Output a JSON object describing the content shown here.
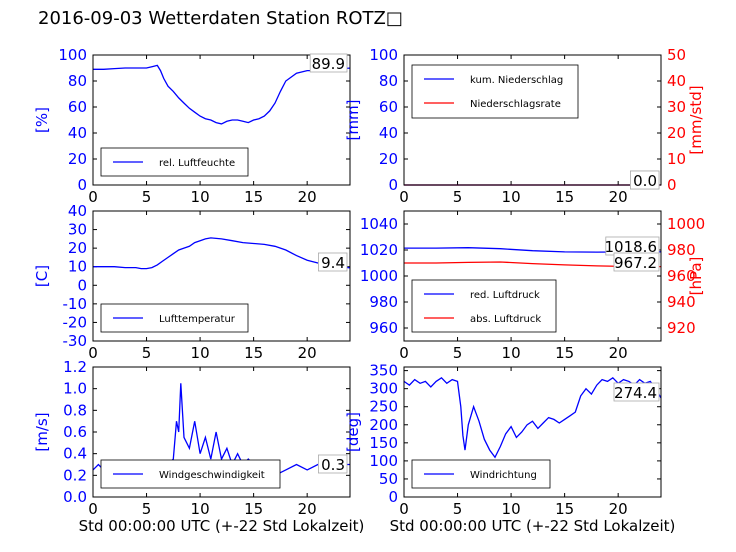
{
  "title": "2016-09-03 Wetterdaten Station ROTZ□",
  "colors": {
    "blue": "#0000ff",
    "red": "#ff0000",
    "black": "#000000"
  },
  "chart_data": [
    {
      "id": "humidity",
      "type": "line",
      "xlim": [
        0,
        24
      ],
      "xticks": [
        0,
        5,
        10,
        15,
        20
      ],
      "ylim": [
        0,
        100
      ],
      "yticks": [
        0,
        20,
        40,
        60,
        80,
        100
      ],
      "ylabel": "[%]",
      "xlabel": "",
      "legend_position": "lower-left",
      "last_value": "89.9",
      "series": [
        {
          "name": "rel. Luftfeuchte",
          "color": "#0000ff",
          "axis": "left",
          "x": [
            0,
            1,
            2,
            3,
            4,
            5,
            5.5,
            6,
            6.3,
            6.6,
            7,
            7.5,
            8,
            8.5,
            9,
            9.5,
            10,
            10.5,
            11,
            11.5,
            12,
            12.5,
            13,
            13.5,
            14,
            14.5,
            15,
            15.5,
            16,
            16.5,
            17,
            17.5,
            18,
            19,
            20,
            21,
            22,
            23,
            24
          ],
          "y": [
            89,
            89,
            89.5,
            90,
            90,
            90,
            91,
            92,
            88,
            82,
            76,
            72,
            67,
            63,
            59,
            56,
            53,
            51,
            50,
            48,
            47,
            49,
            50,
            50,
            49,
            48,
            50,
            51,
            53,
            57,
            63,
            72,
            80,
            86,
            88,
            88,
            89,
            89.5,
            89.9
          ]
        }
      ]
    },
    {
      "id": "precipitation",
      "type": "line",
      "xlim": [
        0,
        24
      ],
      "xticks": [
        0,
        5,
        10,
        15,
        20
      ],
      "ylim": [
        0,
        100
      ],
      "yticks": [
        0,
        20,
        40,
        60,
        80,
        100
      ],
      "ylabel": "[mm]",
      "y2lim": [
        0,
        50
      ],
      "y2ticks": [
        0,
        10,
        20,
        30,
        40,
        50
      ],
      "y2label": "[mm/std]",
      "legend_position": "upper-left",
      "last_value": "0.0",
      "last_value2": "0.0",
      "series": [
        {
          "name": "kum. Niederschlag",
          "color": "#0000ff",
          "axis": "left",
          "x": [
            0,
            24
          ],
          "y": [
            0,
            0
          ]
        },
        {
          "name": "Niederschlagsrate",
          "color": "#ff0000",
          "axis": "right",
          "x": [
            0,
            24
          ],
          "y": [
            0,
            0
          ]
        }
      ]
    },
    {
      "id": "temperature",
      "type": "line",
      "xlim": [
        0,
        24
      ],
      "xticks": [
        0,
        5,
        10,
        15,
        20
      ],
      "ylim": [
        -30,
        40
      ],
      "yticks": [
        -30,
        -20,
        -10,
        0,
        10,
        20,
        30,
        40
      ],
      "ylabel": "[C]",
      "legend_position": "lower-left",
      "last_value": "9.4",
      "series": [
        {
          "name": "Lufttemperatur",
          "color": "#0000ff",
          "axis": "left",
          "x": [
            0,
            1,
            2,
            3,
            4,
            4.5,
            5,
            5.5,
            6,
            6.5,
            7,
            7.5,
            8,
            8.5,
            9,
            9.5,
            10,
            10.5,
            11,
            12,
            13,
            14,
            15,
            16,
            17,
            18,
            19,
            20,
            21,
            22,
            23,
            24
          ],
          "y": [
            10,
            10,
            10,
            9.5,
            9.5,
            9,
            9,
            9.5,
            11,
            13,
            15,
            17,
            19,
            20,
            21,
            23,
            24,
            25,
            25.5,
            25,
            24,
            23,
            22.5,
            22,
            21,
            19,
            16,
            13.5,
            12,
            10.5,
            10,
            9.4
          ]
        }
      ]
    },
    {
      "id": "pressure",
      "type": "line",
      "xlim": [
        0,
        24
      ],
      "xticks": [
        0,
        5,
        10,
        15,
        20
      ],
      "ylim": [
        950,
        1050
      ],
      "yticks": [
        960,
        980,
        1000,
        1020,
        1040
      ],
      "y2lim": [
        910,
        1010
      ],
      "y2ticks": [
        920,
        940,
        960,
        980,
        1000
      ],
      "y2label": "[hPa]",
      "legend_position": "lower-left",
      "last_value": "1018.6",
      "last_value2": "967.2",
      "series": [
        {
          "name": "red. Luftdruck",
          "color": "#0000ff",
          "axis": "left",
          "x": [
            0,
            3,
            6,
            9,
            12,
            15,
            18,
            21,
            24
          ],
          "y": [
            1021.5,
            1021.5,
            1021.8,
            1021,
            1019.5,
            1018.5,
            1018.4,
            1018.5,
            1018.6
          ]
        },
        {
          "name": "abs. Luftdruck",
          "color": "#ff0000",
          "axis": "right",
          "x": [
            0,
            3,
            6,
            9,
            12,
            15,
            18,
            21,
            24
          ],
          "y": [
            970,
            970,
            970.5,
            970.8,
            969.5,
            968.5,
            967.8,
            967.3,
            967.2
          ]
        }
      ]
    },
    {
      "id": "wind-speed",
      "type": "line",
      "xlim": [
        0,
        24
      ],
      "xticks": [
        0,
        5,
        10,
        15,
        20
      ],
      "ylim": [
        0,
        1.2
      ],
      "yticks": [
        0.0,
        0.2,
        0.4,
        0.6,
        0.8,
        1.0,
        1.2
      ],
      "ylabel": "[m/s]",
      "xlabel": "Std 00:00:00 UTC (+-22 Std Lokalzeit)",
      "legend_position": "lower-left",
      "last_value": "0.3",
      "series": [
        {
          "name": "Windgeschwindigkeit",
          "color": "#0000ff",
          "axis": "left",
          "x": [
            0,
            0.5,
            1,
            1.5,
            2,
            2.5,
            3,
            3.5,
            4,
            4.5,
            5,
            5.5,
            6,
            6.5,
            7,
            7.5,
            7.8,
            8,
            8.2,
            8.5,
            9,
            9.5,
            10,
            10.5,
            11,
            11.5,
            12,
            12.5,
            13,
            13.5,
            14,
            14.5,
            15,
            15.5,
            16,
            16.5,
            17,
            18,
            19,
            20,
            21,
            22,
            23,
            24
          ],
          "y": [
            0.25,
            0.3,
            0.25,
            0.2,
            0.25,
            0.3,
            0.25,
            0.2,
            0.25,
            0.2,
            0.25,
            0.2,
            0.25,
            0.2,
            0.3,
            0.35,
            0.7,
            0.6,
            1.05,
            0.55,
            0.45,
            0.7,
            0.4,
            0.55,
            0.35,
            0.6,
            0.35,
            0.45,
            0.3,
            0.4,
            0.3,
            0.35,
            0.3,
            0.25,
            0.2,
            0.25,
            0.2,
            0.25,
            0.3,
            0.25,
            0.3,
            0.25,
            0.3,
            0.3
          ]
        }
      ]
    },
    {
      "id": "wind-direction",
      "type": "line",
      "xlim": [
        0,
        24
      ],
      "xticks": [
        0,
        5,
        10,
        15,
        20
      ],
      "ylim": [
        0,
        360
      ],
      "yticks": [
        0,
        50,
        100,
        150,
        200,
        250,
        300,
        350
      ],
      "ylabel": "[deg]",
      "xlabel": "Std 00:00:00 UTC (+-22 Std Lokalzeit)",
      "legend_position": "lower-left",
      "last_value": "274.4",
      "series": [
        {
          "name": "Windrichtung",
          "color": "#0000ff",
          "axis": "left",
          "x": [
            0,
            0.5,
            1,
            1.5,
            2,
            2.5,
            3,
            3.5,
            4,
            4.5,
            5,
            5.3,
            5.5,
            5.7,
            6,
            6.5,
            7,
            7.5,
            8,
            8.5,
            9,
            9.5,
            10,
            10.5,
            11,
            11.5,
            12,
            12.5,
            13,
            13.5,
            14,
            14.5,
            15,
            15.5,
            16,
            16.5,
            17,
            17.5,
            18,
            18.5,
            19,
            19.5,
            20,
            20.5,
            21,
            21.5,
            22,
            22.5,
            23,
            23.5,
            24
          ],
          "y": [
            320,
            310,
            325,
            315,
            320,
            305,
            320,
            330,
            315,
            325,
            320,
            250,
            170,
            130,
            200,
            250,
            210,
            160,
            130,
            110,
            140,
            175,
            195,
            165,
            180,
            200,
            210,
            190,
            205,
            220,
            215,
            205,
            215,
            225,
            235,
            280,
            300,
            285,
            310,
            325,
            320,
            330,
            315,
            325,
            320,
            310,
            325,
            315,
            320,
            300,
            274.4
          ]
        }
      ]
    }
  ]
}
